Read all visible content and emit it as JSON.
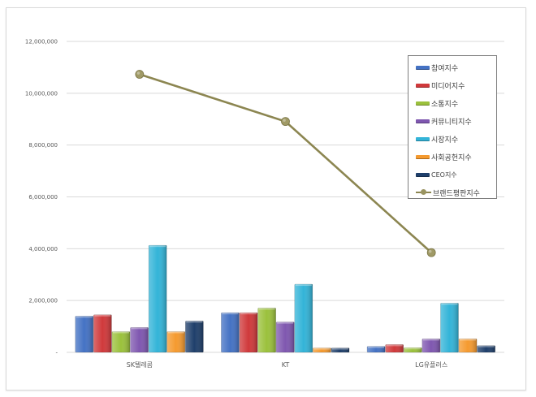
{
  "chart_data": {
    "type": "bar",
    "title": "",
    "xlabel": "",
    "ylabel": "",
    "ylim": [
      0,
      12000000
    ],
    "yticks": [
      0,
      2000000,
      4000000,
      6000000,
      8000000,
      10000000,
      12000000
    ],
    "ytick_labels": [
      "-",
      "2,000,000",
      "4,000,000",
      "6,000,000",
      "8,000,000",
      "10,000,000",
      "12,000,000"
    ],
    "grid": true,
    "legend_position": "right-top-inside",
    "categories": [
      "SK텔레콤",
      "KT",
      "LG유플러스"
    ],
    "series": [
      {
        "name": "참여지수",
        "type": "bar",
        "color": "#4472c4",
        "values": [
          1400000,
          1530000,
          230000
        ]
      },
      {
        "name": "미디어지수",
        "type": "bar",
        "color": "#d0393b",
        "values": [
          1450000,
          1530000,
          300000
        ]
      },
      {
        "name": "소통지수",
        "type": "bar",
        "color": "#9bc13c",
        "values": [
          800000,
          1710000,
          180000
        ]
      },
      {
        "name": "커뮤니티지수",
        "type": "bar",
        "color": "#7f57b0",
        "values": [
          960000,
          1170000,
          520000
        ]
      },
      {
        "name": "시장지수",
        "type": "bar",
        "color": "#33b4d8",
        "values": [
          4130000,
          2630000,
          1900000
        ]
      },
      {
        "name": "사회공헌지수",
        "type": "bar",
        "color": "#f59a2f",
        "values": [
          800000,
          170000,
          520000
        ]
      },
      {
        "name": "CEO지수",
        "type": "bar",
        "color": "#1f3f6b",
        "values": [
          1210000,
          170000,
          260000
        ]
      },
      {
        "name": "브랜드평판지수",
        "type": "line",
        "color": "#8c8651",
        "values": [
          10730000,
          8910000,
          3850000
        ]
      }
    ]
  },
  "legend": {
    "items": [
      {
        "label": "참여지수",
        "color": "#4472c4",
        "kind": "bar"
      },
      {
        "label": "미디어지수",
        "color": "#d0393b",
        "kind": "bar"
      },
      {
        "label": "소통지수",
        "color": "#9bc13c",
        "kind": "bar"
      },
      {
        "label": "커뮤니티지수",
        "color": "#7f57b0",
        "kind": "bar"
      },
      {
        "label": "시장지수",
        "color": "#33b4d8",
        "kind": "bar"
      },
      {
        "label": "사회공헌지수",
        "color": "#f59a2f",
        "kind": "bar"
      },
      {
        "label": "CEO지수",
        "color": "#1f3f6b",
        "kind": "bar"
      },
      {
        "label": "브랜드평판지수",
        "color": "#8c8651",
        "kind": "line"
      }
    ]
  }
}
